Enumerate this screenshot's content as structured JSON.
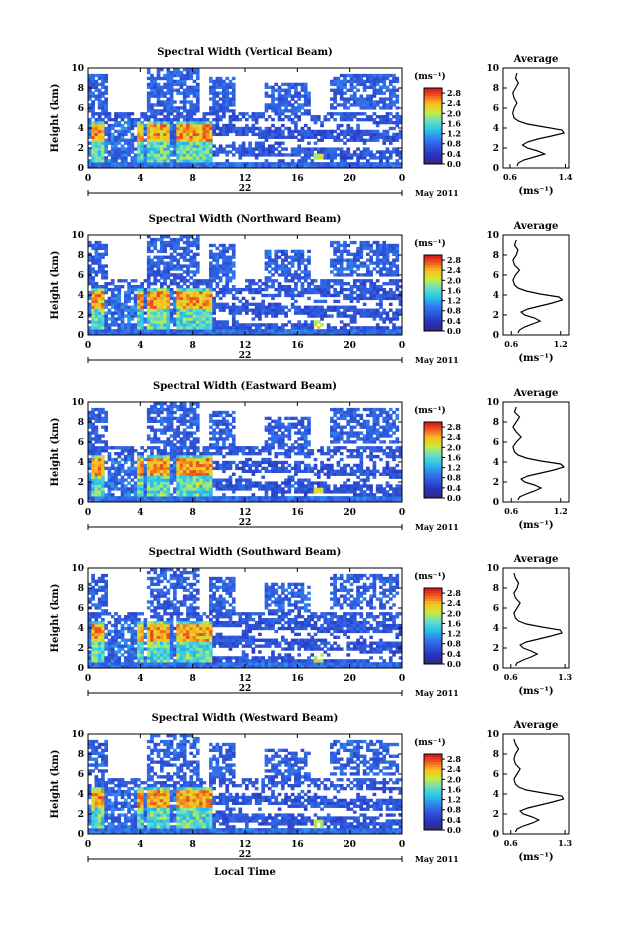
{
  "figure": {
    "xlabel": "Local Time",
    "date_label": "May 2011",
    "day_label": "22",
    "height_label": "Height (km)",
    "units_label": "(ms⁻¹)",
    "average_title": "Average",
    "average_xlabel": "(ms⁻¹)"
  },
  "chart_data": [
    {
      "type": "heatmap",
      "title": "Spectral Width (Vertical Beam)",
      "xlabel": "",
      "ylabel": "Height (km)",
      "x_ticks": [
        "0",
        "4",
        "8",
        "12",
        "16",
        "20",
        "0"
      ],
      "xlim": [
        0,
        24
      ],
      "ylim": [
        0,
        10
      ],
      "y_ticks": [
        "0",
        "2",
        "4",
        "6",
        "8",
        "10"
      ],
      "colorbar": {
        "ticks": [
          "0.0",
          "0.4",
          "0.8",
          "1.2",
          "1.6",
          "2.0",
          "2.4",
          "2.8"
        ],
        "range": [
          0,
          3.0
        ]
      },
      "avg_profile": {
        "title": "Average",
        "x_ticks": [
          "0.6",
          "1.4"
        ],
        "xlim": [
          0.5,
          1.45
        ],
        "heights": [
          0.2,
          0.5,
          0.8,
          1.1,
          1.4,
          1.7,
          2.0,
          2.3,
          2.6,
          2.9,
          3.2,
          3.5,
          3.8,
          4.1,
          4.4,
          4.7,
          5.0,
          5.5,
          6.0,
          6.5,
          7.0,
          7.5,
          8.0,
          8.5,
          9.0,
          9.5
        ],
        "values": [
          0.7,
          0.72,
          0.8,
          0.95,
          1.1,
          1.0,
          0.85,
          0.78,
          0.85,
          1.0,
          1.2,
          1.38,
          1.35,
          1.1,
          0.85,
          0.72,
          0.66,
          0.64,
          0.66,
          0.7,
          0.66,
          0.64,
          0.68,
          0.72,
          0.68,
          0.7
        ]
      }
    },
    {
      "type": "heatmap",
      "title": "Spectral Width (Northward Beam)",
      "xlabel": "",
      "ylabel": "Height (km)",
      "x_ticks": [
        "0",
        "4",
        "8",
        "12",
        "16",
        "20",
        "0"
      ],
      "xlim": [
        0,
        24
      ],
      "ylim": [
        0,
        10
      ],
      "y_ticks": [
        "0",
        "2",
        "4",
        "6",
        "8",
        "10"
      ],
      "colorbar": {
        "ticks": [
          "0.0",
          "0.4",
          "0.8",
          "1.2",
          "1.6",
          "2.0",
          "2.4",
          "2.8"
        ],
        "range": [
          0,
          3.0
        ]
      },
      "avg_profile": {
        "title": "Average",
        "x_ticks": [
          "0.6",
          "1.2"
        ],
        "xlim": [
          0.5,
          1.3
        ],
        "heights": [
          0.2,
          0.5,
          0.8,
          1.1,
          1.4,
          1.7,
          2.0,
          2.3,
          2.6,
          2.9,
          3.2,
          3.5,
          3.8,
          4.1,
          4.4,
          4.7,
          5.0,
          5.5,
          6.0,
          6.5,
          7.0,
          7.5,
          8.0,
          8.5,
          9.0,
          9.5
        ],
        "values": [
          0.68,
          0.7,
          0.76,
          0.86,
          0.95,
          0.88,
          0.76,
          0.72,
          0.8,
          0.95,
          1.1,
          1.22,
          1.18,
          0.95,
          0.78,
          0.68,
          0.64,
          0.62,
          0.65,
          0.7,
          0.64,
          0.62,
          0.66,
          0.68,
          0.64,
          0.66
        ]
      }
    },
    {
      "type": "heatmap",
      "title": "Spectral Width (Eastward Beam)",
      "xlabel": "",
      "ylabel": "Height (km)",
      "x_ticks": [
        "0",
        "4",
        "8",
        "12",
        "16",
        "20",
        "0"
      ],
      "xlim": [
        0,
        24
      ],
      "ylim": [
        0,
        10
      ],
      "y_ticks": [
        "0",
        "2",
        "4",
        "6",
        "8",
        "10"
      ],
      "colorbar": {
        "ticks": [
          "0.0",
          "0.4",
          "0.8",
          "1.2",
          "1.6",
          "2.0",
          "2.4",
          "2.8"
        ],
        "range": [
          0,
          3.0
        ]
      },
      "avg_profile": {
        "title": "Average",
        "x_ticks": [
          "0.6",
          "1.2"
        ],
        "xlim": [
          0.5,
          1.3
        ],
        "heights": [
          0.2,
          0.5,
          0.8,
          1.1,
          1.4,
          1.7,
          2.0,
          2.3,
          2.6,
          2.9,
          3.2,
          3.5,
          3.8,
          4.1,
          4.4,
          4.7,
          5.0,
          5.5,
          6.0,
          6.5,
          7.0,
          7.5,
          8.0,
          8.5,
          9.0,
          9.5
        ],
        "values": [
          0.68,
          0.7,
          0.78,
          0.88,
          0.96,
          0.88,
          0.76,
          0.72,
          0.8,
          0.96,
          1.12,
          1.24,
          1.2,
          0.96,
          0.78,
          0.68,
          0.64,
          0.62,
          0.66,
          0.72,
          0.66,
          0.62,
          0.66,
          0.7,
          0.64,
          0.66
        ]
      }
    },
    {
      "type": "heatmap",
      "title": "Spectral Width (Southward Beam)",
      "xlabel": "",
      "ylabel": "Height (km)",
      "x_ticks": [
        "0",
        "4",
        "8",
        "12",
        "16",
        "20",
        "0"
      ],
      "xlim": [
        0,
        24
      ],
      "ylim": [
        0,
        10
      ],
      "y_ticks": [
        "0",
        "2",
        "4",
        "6",
        "8",
        "10"
      ],
      "colorbar": {
        "ticks": [
          "0.0",
          "0.4",
          "0.8",
          "1.2",
          "1.6",
          "2.0",
          "2.4",
          "2.8"
        ],
        "range": [
          0,
          3.0
        ]
      },
      "avg_profile": {
        "title": "Average",
        "x_ticks": [
          "0.6",
          "1.3"
        ],
        "xlim": [
          0.5,
          1.35
        ],
        "heights": [
          0.2,
          0.5,
          0.8,
          1.1,
          1.4,
          1.7,
          2.0,
          2.3,
          2.6,
          2.9,
          3.2,
          3.5,
          3.8,
          4.1,
          4.4,
          4.7,
          5.0,
          5.5,
          6.0,
          6.5,
          7.0,
          7.5,
          8.0,
          8.5,
          9.0,
          9.5
        ],
        "values": [
          0.66,
          0.68,
          0.76,
          0.86,
          0.94,
          0.86,
          0.76,
          0.72,
          0.8,
          0.96,
          1.12,
          1.26,
          1.24,
          1.0,
          0.8,
          0.7,
          0.66,
          0.64,
          0.68,
          0.72,
          0.66,
          0.64,
          0.68,
          0.7,
          0.66,
          0.64
        ]
      }
    },
    {
      "type": "heatmap",
      "title": "Spectral Width (Westward Beam)",
      "xlabel": "Local Time",
      "ylabel": "Height (km)",
      "x_ticks": [
        "0",
        "4",
        "8",
        "12",
        "16",
        "20",
        "0"
      ],
      "xlim": [
        0,
        24
      ],
      "ylim": [
        0,
        10
      ],
      "y_ticks": [
        "0",
        "2",
        "4",
        "6",
        "8",
        "10"
      ],
      "colorbar": {
        "ticks": [
          "0.0",
          "0.4",
          "0.8",
          "1.2",
          "1.6",
          "2.0",
          "2.4",
          "2.8"
        ],
        "range": [
          0,
          3.0
        ]
      },
      "avg_profile": {
        "title": "Average",
        "x_ticks": [
          "0.6",
          "1.3"
        ],
        "xlim": [
          0.5,
          1.35
        ],
        "heights": [
          0.2,
          0.5,
          0.8,
          1.1,
          1.4,
          1.7,
          2.0,
          2.3,
          2.6,
          2.9,
          3.2,
          3.5,
          3.8,
          4.1,
          4.4,
          4.7,
          5.0,
          5.5,
          6.0,
          6.5,
          7.0,
          7.5,
          8.0,
          8.5,
          9.0,
          9.5
        ],
        "values": [
          0.66,
          0.68,
          0.76,
          0.88,
          0.96,
          0.88,
          0.76,
          0.72,
          0.82,
          0.98,
          1.14,
          1.28,
          1.26,
          1.02,
          0.8,
          0.7,
          0.66,
          0.64,
          0.68,
          0.72,
          0.66,
          0.64,
          0.66,
          0.7,
          0.66,
          0.64
        ]
      }
    }
  ]
}
